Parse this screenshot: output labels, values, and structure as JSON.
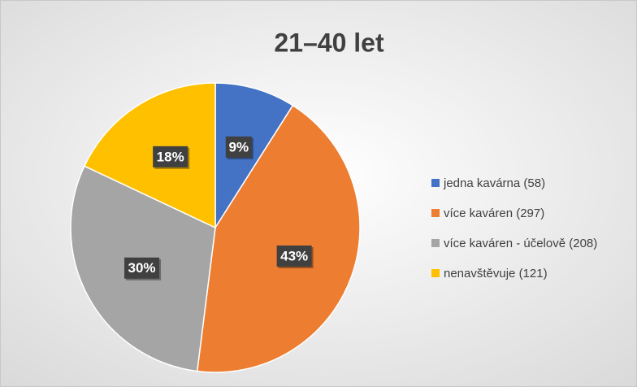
{
  "chart_data": {
    "type": "pie",
    "title": "21–40 let",
    "categories": [
      "jedna kavárna (58)",
      "více kaváren (297)",
      "více kaváren - účelově (208)",
      "nenavštěvuje (121)"
    ],
    "values": [
      9,
      43,
      30,
      18
    ],
    "value_labels": [
      "9%",
      "43%",
      "30%",
      "18%"
    ],
    "colors": [
      "#4472c4",
      "#ed7d31",
      "#a5a5a5",
      "#ffc000"
    ],
    "legend": "right"
  }
}
